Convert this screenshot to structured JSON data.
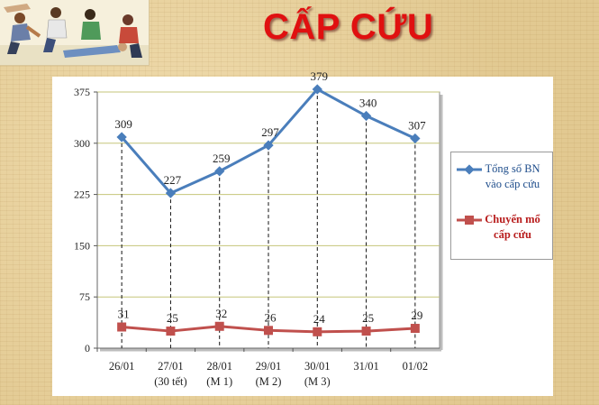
{
  "title": "CẤP CỨU",
  "chart_data": {
    "type": "line",
    "categories": [
      "26/01",
      "27/01\n(30 tết)",
      "28/01\n(M 1)",
      "29/01\n(M 2)",
      "30/01\n(M 3)",
      "31/01",
      "01/02"
    ],
    "series": [
      {
        "name": "Tổng số BN vào cấp cứu",
        "values": [
          309,
          227,
          259,
          297,
          379,
          340,
          307
        ],
        "color": "#4a7ebb",
        "marker": "diamond"
      },
      {
        "name": "Chuyển mổ cấp cứu",
        "values": [
          31,
          25,
          32,
          26,
          24,
          25,
          29
        ],
        "color": "#c0504d",
        "marker": "square"
      }
    ],
    "ylim": [
      0,
      375
    ],
    "yticks": [
      0,
      75,
      150,
      225,
      300,
      375
    ],
    "grid": true,
    "drop_lines": true,
    "legend": "right",
    "plot_background": "#ffffff",
    "gridline_color": "#c6c67a"
  }
}
